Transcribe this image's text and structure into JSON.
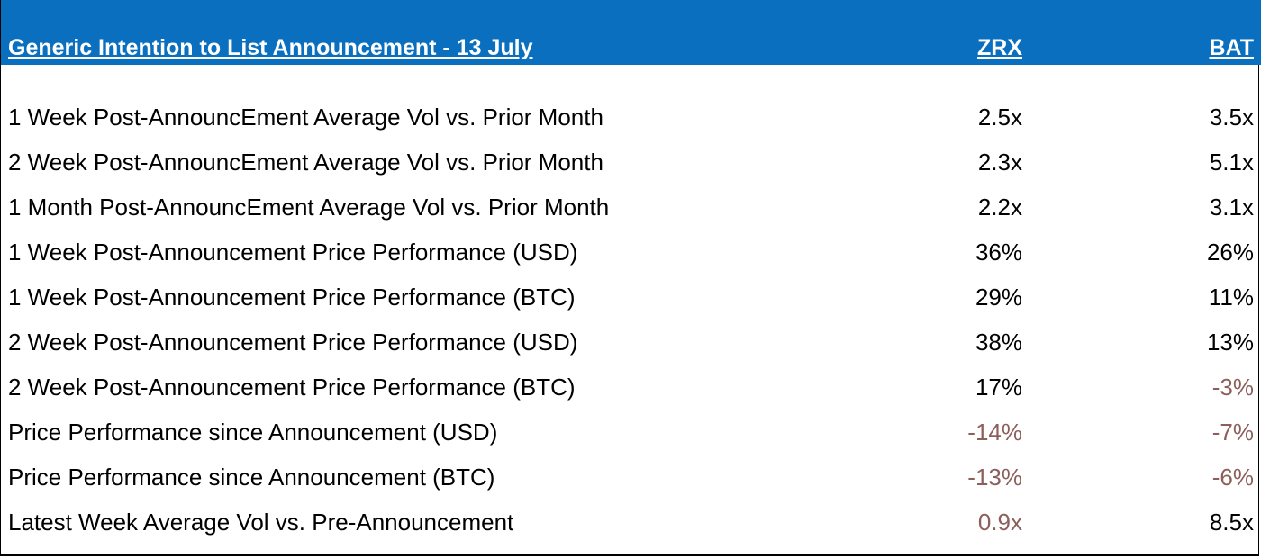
{
  "header": {
    "title": "Generic Intention to List Announcement - 13 July",
    "columns": [
      "ZRX",
      "BAT"
    ]
  },
  "colors": {
    "header_background": "#0b6fbf",
    "header_text": "#ffffff",
    "negative_text": "#8c5f5b"
  },
  "rows": [
    {
      "label": "1 Week Post-AnnouncEment Average Vol vs. Prior Month",
      "zrx": "2.5x",
      "bat": "3.5x",
      "zrx_neg": false,
      "bat_neg": false
    },
    {
      "label": "2 Week Post-AnnouncEment Average Vol vs. Prior Month",
      "zrx": "2.3x",
      "bat": "5.1x",
      "zrx_neg": false,
      "bat_neg": false
    },
    {
      "label": "1 Month Post-AnnouncEment Average Vol vs. Prior Month",
      "zrx": "2.2x",
      "bat": "3.1x",
      "zrx_neg": false,
      "bat_neg": false
    },
    {
      "label": "1 Week Post-Announcement Price Performance (USD)",
      "zrx": "36%",
      "bat": "26%",
      "zrx_neg": false,
      "bat_neg": false
    },
    {
      "label": "1 Week Post-Announcement Price Performance (BTC)",
      "zrx": "29%",
      "bat": "11%",
      "zrx_neg": false,
      "bat_neg": false
    },
    {
      "label": "2 Week Post-Announcement Price Performance (USD)",
      "zrx": "38%",
      "bat": "13%",
      "zrx_neg": false,
      "bat_neg": false
    },
    {
      "label": "2 Week Post-Announcement Price Performance (BTC)",
      "zrx": "17%",
      "bat": "-3%",
      "zrx_neg": false,
      "bat_neg": true
    },
    {
      "label": "Price Performance since Announcement (USD)",
      "zrx": "-14%",
      "bat": "-7%",
      "zrx_neg": true,
      "bat_neg": true
    },
    {
      "label": "Price Performance since Announcement (BTC)",
      "zrx": "-13%",
      "bat": "-6%",
      "zrx_neg": true,
      "bat_neg": true
    },
    {
      "label": "Latest Week Average Vol vs. Pre-Announcement",
      "zrx": "0.9x",
      "bat": "8.5x",
      "zrx_neg": true,
      "bat_neg": false
    }
  ]
}
